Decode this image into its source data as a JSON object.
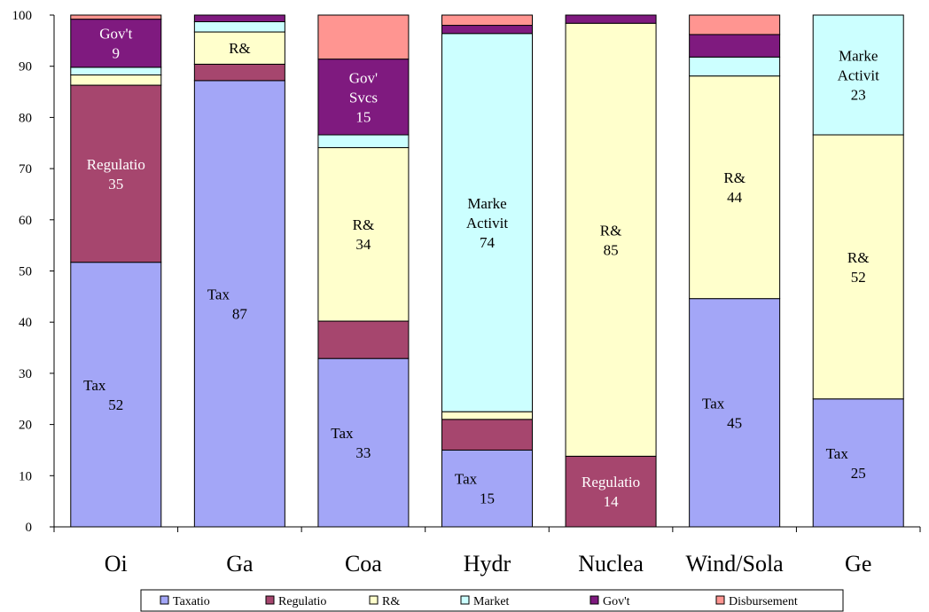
{
  "chart_data": {
    "type": "bar",
    "stacked": true,
    "categories": [
      "Oi",
      "Ga",
      "Coa",
      "Hydr",
      "Nuclea",
      "Wind/Sola",
      "Ge"
    ],
    "ylim": [
      0,
      100
    ],
    "yticks": [
      0,
      10,
      20,
      30,
      40,
      50,
      60,
      70,
      80,
      90,
      100
    ],
    "grid": false,
    "legend_position": "bottom",
    "series": [
      {
        "name": "Taxatio",
        "color": "#a3a6f7",
        "values": [
          51.7,
          87.2,
          32.9,
          15.0,
          0.0,
          44.6,
          25.0
        ]
      },
      {
        "name": "Regulatio",
        "color": "#a6466e",
        "values": [
          34.6,
          3.2,
          7.3,
          6.0,
          13.8,
          0.0,
          0.0
        ]
      },
      {
        "name": "R&",
        "color": "#ffffcc",
        "values": [
          2.0,
          6.3,
          33.9,
          1.5,
          84.6,
          43.5,
          51.6
        ]
      },
      {
        "name": "Market",
        "color": "#ccffff",
        "values": [
          1.5,
          2.0,
          2.5,
          73.9,
          0.0,
          3.7,
          23.4
        ]
      },
      {
        "name": "Gov't",
        "color": "#7f1a7f",
        "values": [
          9.4,
          1.3,
          14.8,
          1.6,
          1.6,
          4.4,
          0.0
        ]
      },
      {
        "name": "Disbursement",
        "color": "#ff9591",
        "values": [
          0.8,
          0.0,
          8.6,
          2.0,
          0.0,
          3.8,
          0.0
        ]
      }
    ],
    "data_labels": [
      {
        "cat": 0,
        "series": 0,
        "lines": [
          "Tax",
          "52"
        ],
        "color": "#000000"
      },
      {
        "cat": 0,
        "series": 1,
        "lines": [
          "Regulatio",
          "35"
        ],
        "color": "#ffffff"
      },
      {
        "cat": 0,
        "series": 4,
        "lines": [
          "Gov't",
          "9"
        ],
        "color": "#ffffff"
      },
      {
        "cat": 1,
        "series": 0,
        "lines": [
          "Tax",
          "87"
        ],
        "color": "#000000"
      },
      {
        "cat": 1,
        "series": 2,
        "lines": [
          "R&"
        ],
        "color": "#000000"
      },
      {
        "cat": 2,
        "series": 0,
        "lines": [
          "Tax",
          "33"
        ],
        "color": "#000000"
      },
      {
        "cat": 2,
        "series": 2,
        "lines": [
          "R&",
          "34"
        ],
        "color": "#000000"
      },
      {
        "cat": 2,
        "series": 4,
        "lines": [
          "Gov'",
          "Svcs",
          "15"
        ],
        "color": "#ffffff"
      },
      {
        "cat": 3,
        "series": 0,
        "lines": [
          "Tax",
          "15"
        ],
        "color": "#000000"
      },
      {
        "cat": 3,
        "series": 3,
        "lines": [
          "Marke",
          "Activit",
          "74"
        ],
        "color": "#000000"
      },
      {
        "cat": 4,
        "series": 1,
        "lines": [
          "Regulatio",
          "14"
        ],
        "color": "#ffffff"
      },
      {
        "cat": 4,
        "series": 2,
        "lines": [
          "R&",
          "85"
        ],
        "color": "#000000"
      },
      {
        "cat": 5,
        "series": 0,
        "lines": [
          "Tax",
          "45"
        ],
        "color": "#000000"
      },
      {
        "cat": 5,
        "series": 2,
        "lines": [
          "R&",
          "44"
        ],
        "color": "#000000"
      },
      {
        "cat": 6,
        "series": 0,
        "lines": [
          "Tax",
          "25"
        ],
        "color": "#000000"
      },
      {
        "cat": 6,
        "series": 2,
        "lines": [
          "R&",
          "52"
        ],
        "color": "#000000"
      },
      {
        "cat": 6,
        "series": 3,
        "lines": [
          "Marke",
          "Activit",
          "23"
        ],
        "color": "#000000"
      }
    ]
  }
}
